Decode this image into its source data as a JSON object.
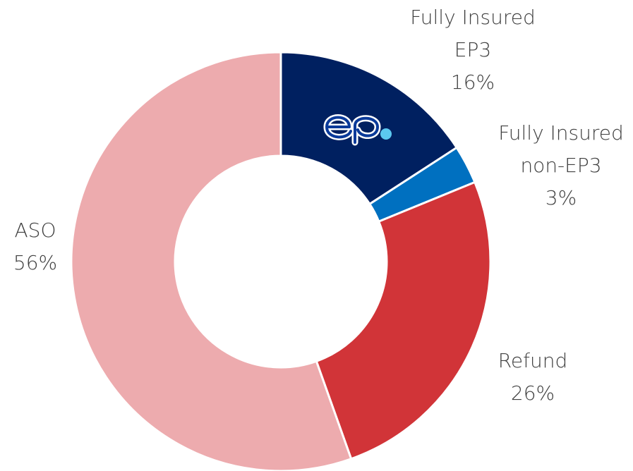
{
  "chart_data": {
    "type": "donut",
    "categories": [
      "Fully Insured EP3",
      "Fully Insured non-EP3",
      "Refund",
      "ASO"
    ],
    "values": [
      16,
      3,
      26,
      56
    ],
    "value_labels": [
      "16%",
      "3%",
      "26%",
      "56%"
    ],
    "colors": [
      "#002060",
      "#0070c0",
      "#d13438",
      "#edabae"
    ]
  }
}
